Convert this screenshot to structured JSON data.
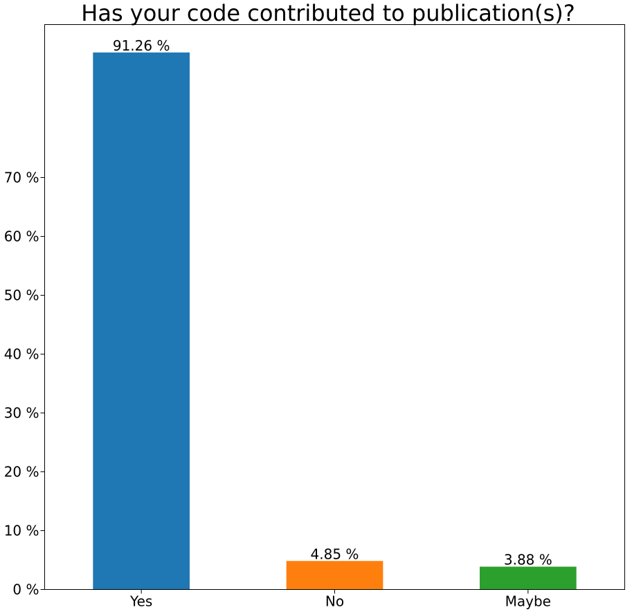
{
  "chart_data": {
    "type": "bar",
    "title": "Has your code contributed to publication(s)?",
    "xlabel": "",
    "ylabel": "",
    "categories": [
      "Yes",
      "No",
      "Maybe"
    ],
    "values": [
      91.26,
      4.85,
      3.88
    ],
    "value_labels": [
      "91.26 %",
      "4.85 %",
      "3.88 %"
    ],
    "colors": [
      "#1f77b4",
      "#ff7f0e",
      "#2ca02c"
    ],
    "ylim": [
      0,
      96
    ],
    "yticks": [
      0,
      10,
      20,
      30,
      40,
      50,
      60,
      70
    ],
    "ytick_labels": [
      "0 %",
      "10 %",
      "20 %",
      "30 %",
      "40 %",
      "50 %",
      "60 %",
      "70 %"
    ],
    "grid": false,
    "legend": "none"
  }
}
